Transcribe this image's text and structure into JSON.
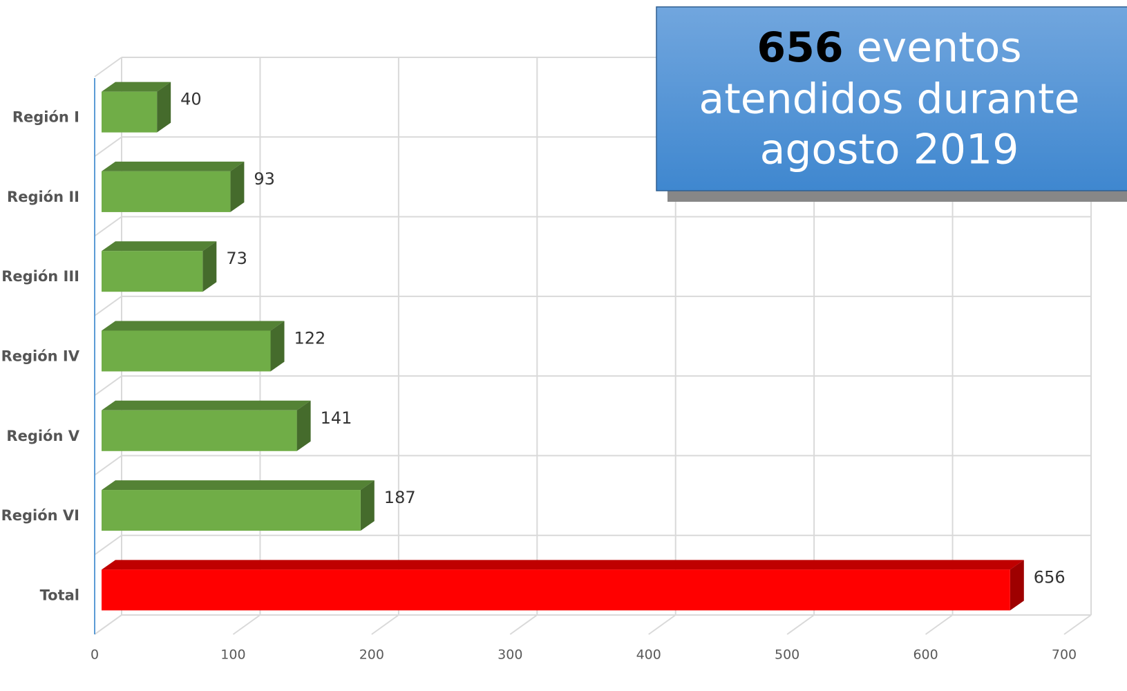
{
  "chart_data": {
    "type": "bar3d_horizontal",
    "categories": [
      "Región I",
      "Región II",
      "Región III",
      "Región IV",
      "Región V",
      "Región VI",
      "Total"
    ],
    "values": [
      40,
      93,
      73,
      122,
      141,
      187,
      656
    ],
    "colors": [
      "#70ad47",
      "#70ad47",
      "#70ad47",
      "#70ad47",
      "#70ad47",
      "#70ad47",
      "#ff0000"
    ],
    "xlim": [
      0,
      700
    ],
    "xticks": [
      0,
      100,
      200,
      300,
      400,
      500,
      600,
      700
    ],
    "grid": true,
    "annotation": {
      "bold": "656",
      "lines": [
        "eventos",
        "atendidos durante",
        "agosto 2019"
      ]
    }
  }
}
